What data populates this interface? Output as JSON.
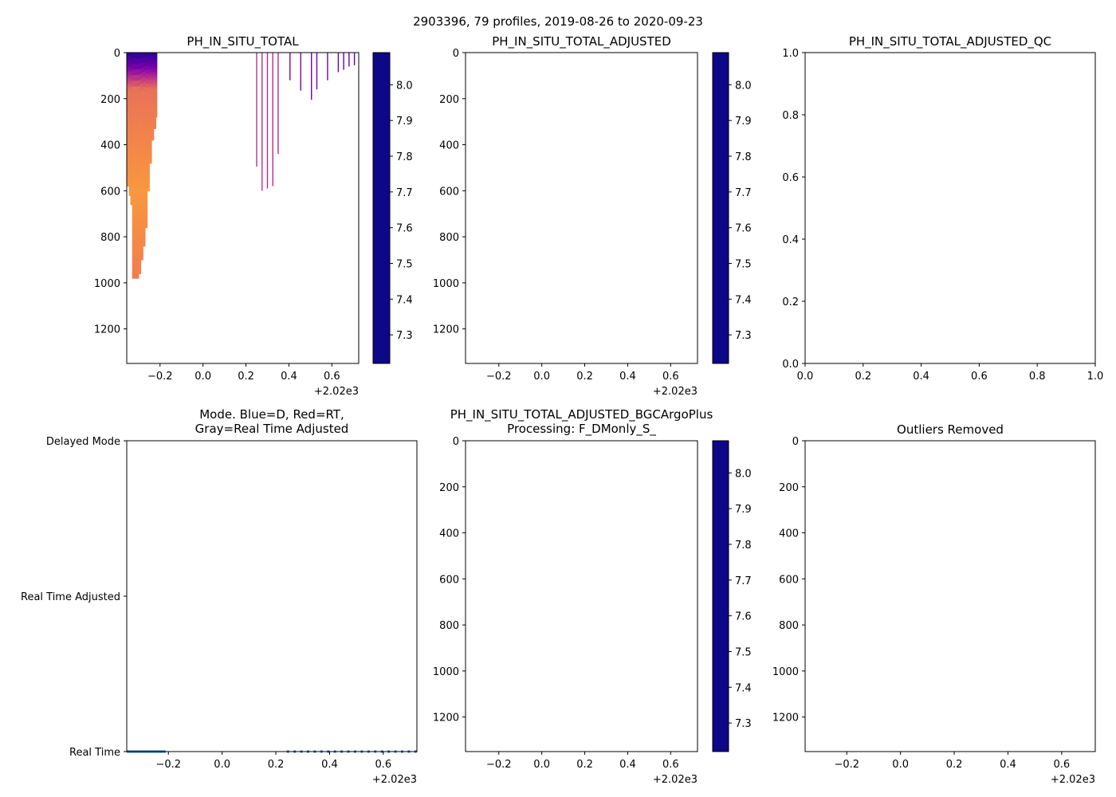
{
  "figure": {
    "title": "2903396, 79 profiles, 2019-08-26 to 2020-09-23"
  },
  "colors": {
    "plasma": [
      "#0d0887",
      "#41049d",
      "#6a00a8",
      "#8f0da4",
      "#b12a90",
      "#cc4778",
      "#e16462",
      "#f2844b",
      "#fca636",
      "#fcce25",
      "#f0f921"
    ],
    "mode_line": "#1f77b4",
    "axis": "#000000"
  },
  "chart_data": [
    {
      "id": "ph_raw",
      "type": "heatmap",
      "title": "PH_IN_SITU_TOTAL",
      "xlim": [
        -0.355,
        0.725
      ],
      "ylim": [
        1350,
        0
      ],
      "x_ticks": [
        -0.2,
        0.0,
        0.2,
        0.4,
        0.6
      ],
      "x_tick_labels": [
        "−0.2",
        "0.0",
        "0.2",
        "0.4",
        "0.6"
      ],
      "x_offset": "+2.02e3",
      "y_ticks": [
        0,
        200,
        400,
        600,
        800,
        1000,
        1200
      ],
      "y_tick_labels": [
        "0",
        "200",
        "400",
        "600",
        "800",
        "1000",
        "1200"
      ],
      "colorbar": {
        "cmap": "plasma",
        "range": [
          7.22,
          8.09
        ],
        "ticks": [
          7.3,
          7.4,
          7.5,
          7.6,
          7.7,
          7.8,
          7.9,
          8.0
        ],
        "tick_labels": [
          "7.3",
          "7.4",
          "7.5",
          "7.6",
          "7.7",
          "7.8",
          "7.9",
          "8.0"
        ]
      },
      "dense_block": {
        "x_range": [
          -0.355,
          -0.215
        ],
        "max_depth": [
          [
            -0.355,
            580
          ],
          [
            -0.345,
            620
          ],
          [
            -0.338,
            660
          ],
          [
            -0.33,
            980
          ],
          [
            -0.32,
            980
          ],
          [
            -0.31,
            980
          ],
          [
            -0.3,
            960
          ],
          [
            -0.29,
            900
          ],
          [
            -0.28,
            840
          ],
          [
            -0.27,
            760
          ],
          [
            -0.26,
            600
          ],
          [
            -0.25,
            480
          ],
          [
            -0.24,
            380
          ],
          [
            -0.23,
            330
          ],
          [
            -0.22,
            280
          ]
        ],
        "surface_ph": 8.05,
        "mid_ph": 7.43,
        "deep_ph": 7.5
      },
      "sparse_profiles": [
        {
          "x": 0.25,
          "max_depth": 495,
          "ph": 7.72
        },
        {
          "x": 0.275,
          "max_depth": 600,
          "ph": 7.72
        },
        {
          "x": 0.3,
          "max_depth": 590,
          "ph": 7.74
        },
        {
          "x": 0.325,
          "max_depth": 580,
          "ph": 7.74
        },
        {
          "x": 0.35,
          "max_depth": 440,
          "ph": 7.74
        },
        {
          "x": 0.405,
          "max_depth": 120,
          "ph": 7.88
        },
        {
          "x": 0.455,
          "max_depth": 165,
          "ph": 7.88
        },
        {
          "x": 0.505,
          "max_depth": 205,
          "ph": 7.9
        },
        {
          "x": 0.53,
          "max_depth": 160,
          "ph": 7.9
        },
        {
          "x": 0.58,
          "max_depth": 120,
          "ph": 7.9
        },
        {
          "x": 0.63,
          "max_depth": 85,
          "ph": 7.92
        },
        {
          "x": 0.655,
          "max_depth": 75,
          "ph": 7.92
        },
        {
          "x": 0.68,
          "max_depth": 60,
          "ph": 7.92
        },
        {
          "x": 0.705,
          "max_depth": 55,
          "ph": 7.92
        }
      ]
    },
    {
      "id": "ph_adjusted",
      "type": "heatmap",
      "title": "PH_IN_SITU_TOTAL_ADJUSTED",
      "xlim": [
        -0.355,
        0.725
      ],
      "ylim": [
        1350,
        0
      ],
      "x_ticks": [
        -0.2,
        0.0,
        0.2,
        0.4,
        0.6
      ],
      "x_tick_labels": [
        "−0.2",
        "0.0",
        "0.2",
        "0.4",
        "0.6"
      ],
      "x_offset": "+2.02e3",
      "y_ticks": [
        0,
        200,
        400,
        600,
        800,
        1000,
        1200
      ],
      "y_tick_labels": [
        "0",
        "200",
        "400",
        "600",
        "800",
        "1000",
        "1200"
      ],
      "colorbar": {
        "cmap": "plasma",
        "range": [
          7.22,
          8.09
        ],
        "ticks": [
          7.3,
          7.4,
          7.5,
          7.6,
          7.7,
          7.8,
          7.9,
          8.0
        ],
        "tick_labels": [
          "7.3",
          "7.4",
          "7.5",
          "7.6",
          "7.7",
          "7.8",
          "7.9",
          "8.0"
        ]
      }
    },
    {
      "id": "ph_adjusted_qc",
      "type": "scatter",
      "title": "PH_IN_SITU_TOTAL_ADJUSTED_QC",
      "xlim": [
        0,
        1
      ],
      "ylim": [
        0,
        1
      ],
      "x_ticks": [
        0,
        0.2,
        0.4,
        0.6,
        0.8,
        1.0
      ],
      "x_tick_labels": [
        "0.0",
        "0.2",
        "0.4",
        "0.6",
        "0.8",
        "1.0"
      ],
      "y_ticks": [
        0,
        0.2,
        0.4,
        0.6,
        0.8,
        1.0
      ],
      "y_tick_labels": [
        "0.0",
        "0.2",
        "0.4",
        "0.6",
        "0.8",
        "1.0"
      ]
    },
    {
      "id": "mode",
      "type": "line",
      "title_lines": [
        "Mode. Blue=D, Red=RT,",
        "Gray=Real Time Adjusted"
      ],
      "xlim": [
        -0.355,
        0.725
      ],
      "ylim": [
        0,
        2
      ],
      "x_ticks": [
        -0.2,
        0.0,
        0.2,
        0.4,
        0.6
      ],
      "x_tick_labels": [
        "−0.2",
        "0.0",
        "0.2",
        "0.4",
        "0.6"
      ],
      "x_offset": "+2.02e3",
      "y_ticks": [
        0,
        1,
        2
      ],
      "y_tick_labels": [
        "Real Time",
        "Real Time Adjusted",
        "Delayed Mode"
      ],
      "segment": {
        "x_start": -0.355,
        "x_end": -0.21,
        "y": 0
      },
      "points": [
        0.245,
        0.27,
        0.295,
        0.32,
        0.345,
        0.37,
        0.395,
        0.42,
        0.445,
        0.47,
        0.495,
        0.52,
        0.545,
        0.57,
        0.595,
        0.62,
        0.645,
        0.67,
        0.695,
        0.72
      ],
      "points_y": 0
    },
    {
      "id": "ph_bgc",
      "type": "heatmap",
      "title_lines": [
        "PH_IN_SITU_TOTAL_ADJUSTED_BGCArgoPlus",
        "Processing: F_DMonly_S_"
      ],
      "xlim": [
        -0.355,
        0.725
      ],
      "ylim": [
        1350,
        0
      ],
      "x_ticks": [
        -0.2,
        0.0,
        0.2,
        0.4,
        0.6
      ],
      "x_tick_labels": [
        "−0.2",
        "0.0",
        "0.2",
        "0.4",
        "0.6"
      ],
      "x_offset": "+2.02e3",
      "y_ticks": [
        0,
        200,
        400,
        600,
        800,
        1000,
        1200
      ],
      "y_tick_labels": [
        "0",
        "200",
        "400",
        "600",
        "800",
        "1000",
        "1200"
      ],
      "colorbar": {
        "cmap": "plasma",
        "range": [
          7.22,
          8.09
        ],
        "ticks": [
          7.3,
          7.4,
          7.5,
          7.6,
          7.7,
          7.8,
          7.9,
          8.0
        ],
        "tick_labels": [
          "7.3",
          "7.4",
          "7.5",
          "7.6",
          "7.7",
          "7.8",
          "7.9",
          "8.0"
        ]
      }
    },
    {
      "id": "outliers",
      "type": "scatter",
      "title": "Outliers Removed",
      "xlim": [
        -0.355,
        0.725
      ],
      "ylim": [
        1350,
        0
      ],
      "x_ticks": [
        -0.2,
        0.0,
        0.2,
        0.4,
        0.6
      ],
      "x_tick_labels": [
        "−0.2",
        "0.0",
        "0.2",
        "0.4",
        "0.6"
      ],
      "x_offset": "+2.02e3",
      "y_ticks": [
        0,
        200,
        400,
        600,
        800,
        1000,
        1200
      ],
      "y_tick_labels": [
        "0",
        "200",
        "400",
        "600",
        "800",
        "1000",
        "1200"
      ]
    }
  ]
}
